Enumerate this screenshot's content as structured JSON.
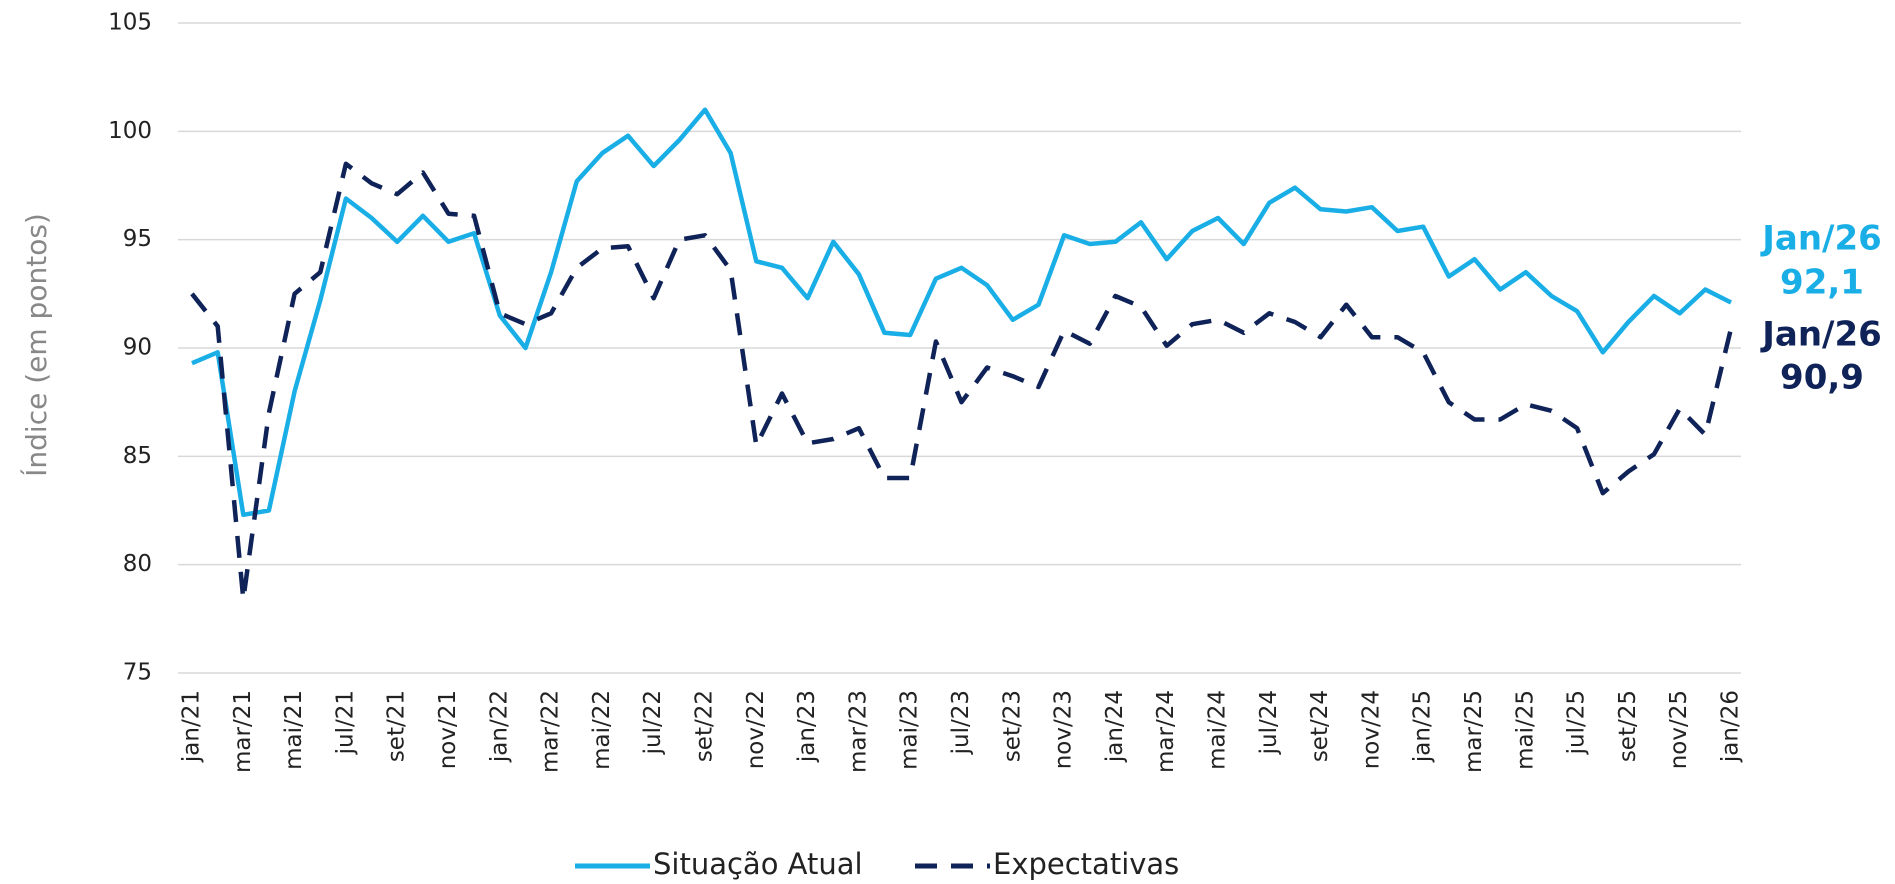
{
  "chart_data": {
    "type": "line",
    "y_label": "Índice (em pontos)",
    "categories": [
      "jan/21",
      null,
      "mar/21",
      null,
      "mai/21",
      null,
      "jul/21",
      null,
      "set/21",
      null,
      "nov/21",
      null,
      "jan/22",
      null,
      "mar/22",
      null,
      "mai/22",
      null,
      "jul/22",
      null,
      "set/22",
      null,
      "nov/22",
      null,
      "jan/23",
      null,
      "mar/23",
      null,
      "mai/23",
      null,
      "jul/23",
      null,
      "set/23",
      null,
      "nov/23",
      null,
      "jan/24",
      null,
      "mar/24",
      null,
      "mai/24",
      null,
      "jul/24",
      null,
      "set/24",
      null,
      "nov/24",
      null,
      "jan/25",
      null,
      "mar/25",
      null,
      "mai/25",
      null,
      "jul/25",
      null,
      "set/25",
      null,
      "nov/25",
      null,
      "jan/26"
    ],
    "series": [
      {
        "name": "Situação Atual",
        "color": "#1aaee6",
        "line_style": "solid",
        "values": [
          89.3,
          89.8,
          82.3,
          82.5,
          88,
          92.2,
          96.9,
          96,
          94.9,
          96.1,
          94.9,
          95.3,
          91.5,
          90,
          93.5,
          97.7,
          99,
          99.8,
          98.4,
          99.6,
          101,
          99,
          94,
          93.7,
          92.3,
          94.9,
          93.4,
          90.7,
          90.6,
          93.2,
          93.7,
          92.9,
          91.3,
          92,
          95.2,
          94.8,
          94.9,
          95.8,
          94.1,
          95.4,
          96,
          94.8,
          96.7,
          97.4,
          96.4,
          96.3,
          96.5,
          95.4,
          95.6,
          93.3,
          94.1,
          92.7,
          93.5,
          92.4,
          91.7,
          89.8,
          91.2,
          92.4,
          91.6,
          92.7,
          92.1
        ]
      },
      {
        "name": "Expectativas",
        "color": "#0f2359",
        "line_style": "dashed",
        "values": [
          92.5,
          91,
          78.4,
          87,
          92.5,
          93.5,
          98.5,
          97.6,
          97.1,
          98.1,
          96.2,
          96.1,
          91.6,
          91.1,
          91.6,
          93.7,
          94.6,
          94.7,
          92.3,
          95,
          95.2,
          93.6,
          85.5,
          87.9,
          85.6,
          85.8,
          86.3,
          84,
          84,
          90.3,
          87.5,
          89.1,
          88.7,
          88.2,
          90.8,
          90.2,
          92.4,
          91.9,
          90.1,
          91.1,
          91.3,
          90.7,
          91.6,
          91.2,
          90.5,
          92,
          90.5,
          90.5,
          89.8,
          87.5,
          86.7,
          86.7,
          87.4,
          87.1,
          86.3,
          83.3,
          84.3,
          85.1,
          87.2,
          86,
          90.9
        ]
      }
    ],
    "annotations": [
      {
        "text": "Jan/26",
        "color": "#1aaee6"
      },
      {
        "text": "92,1",
        "color": "#1aaee6"
      },
      {
        "text": "Jan/26",
        "color": "#0f2359"
      },
      {
        "text": "90,9",
        "color": "#0f2359"
      }
    ],
    "ylim": [
      75,
      105
    ],
    "yticks": [
      75,
      80,
      85,
      90,
      95,
      100,
      105
    ],
    "grid": true,
    "legend": "bottom"
  }
}
